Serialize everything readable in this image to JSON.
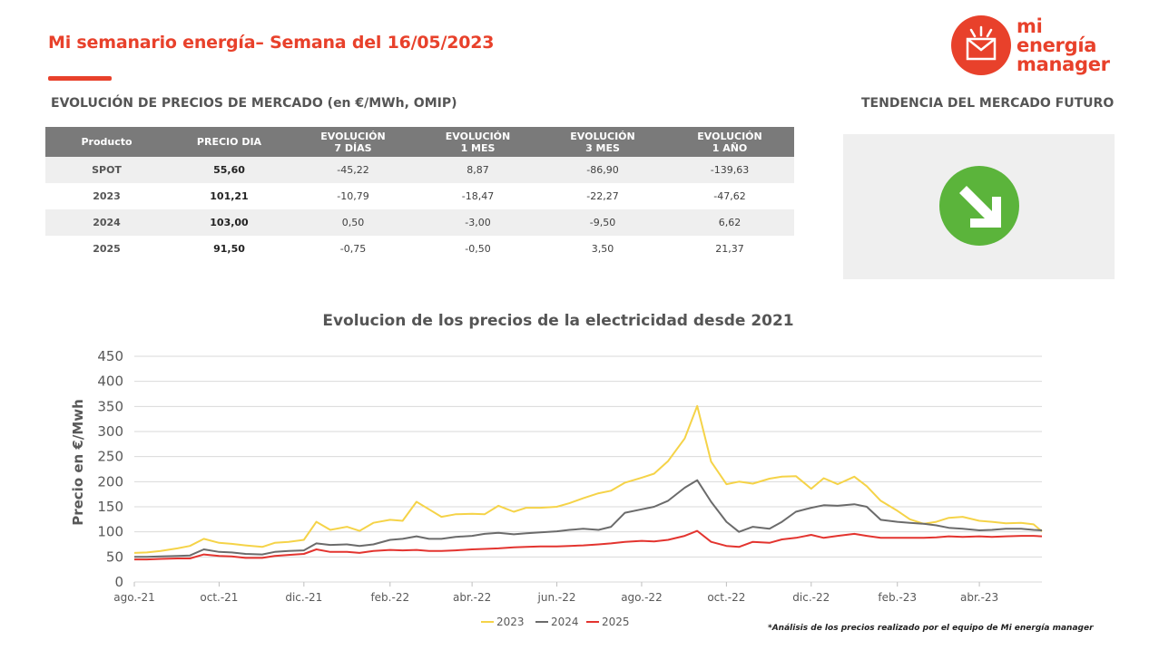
{
  "header": {
    "title": "Mi semanario energía– Semana del 16/05/2023"
  },
  "logo": {
    "line1": "mi",
    "line2": "energía",
    "line3": "manager",
    "color": "#e8412b"
  },
  "sections": {
    "left": "EVOLUCIÓN DE PRECIOS DE MERCADO (en €/MWh, OMIP)",
    "right": "TENDENCIA DEL MERCADO FUTURO"
  },
  "table": {
    "headers": [
      [
        "Producto"
      ],
      [
        "PRECIO DIA"
      ],
      [
        "EVOLUCIÓN",
        "7 DÍAS"
      ],
      [
        "EVOLUCIÓN",
        "1 MES"
      ],
      [
        "EVOLUCIÓN",
        "3 MES"
      ],
      [
        "EVOLUCIÓN",
        "1 AÑO"
      ]
    ],
    "rows": [
      [
        "SPOT",
        "55,60",
        "-45,22",
        "8,87",
        "-86,90",
        "-139,63"
      ],
      [
        "2023",
        "101,21",
        "-10,79",
        "-18,47",
        "-22,27",
        "-47,62"
      ],
      [
        "2024",
        "103,00",
        "0,50",
        "-3,00",
        "-9,50",
        "6,62"
      ],
      [
        "2025",
        "91,50",
        "-0,75",
        "-0,50",
        "3,50",
        "21,37"
      ]
    ]
  },
  "trend": {
    "icon": "arrow-down-right-icon",
    "color": "#5bb43b"
  },
  "chart_data": {
    "type": "line",
    "title": "Evolucion de los precios de la electricidad desde 2021",
    "ylabel": "Precio en €/Mwh",
    "xlabel": "",
    "ylim": [
      0,
      450
    ],
    "yticks": [
      0,
      50,
      100,
      150,
      200,
      250,
      300,
      350,
      400,
      450
    ],
    "xticks": [
      "ago.-21",
      "oct.-21",
      "dic.-21",
      "feb.-22",
      "abr.-22",
      "jun.-22",
      "ago.-22",
      "oct.-22",
      "dic.-22",
      "feb.-23",
      "abr.-23"
    ],
    "x_start": "2021-08-01",
    "x_end": "2023-05-16",
    "grid": true,
    "legend_position": "bottom",
    "x": [
      "2021-08-01",
      "2021-08-10",
      "2021-08-20",
      "2021-09-01",
      "2021-09-10",
      "2021-09-20",
      "2021-10-01",
      "2021-10-10",
      "2021-10-20",
      "2021-11-01",
      "2021-11-10",
      "2021-11-20",
      "2021-12-01",
      "2021-12-10",
      "2021-12-20",
      "2022-01-01",
      "2022-01-10",
      "2022-01-20",
      "2022-02-01",
      "2022-02-10",
      "2022-02-20",
      "2022-03-01",
      "2022-03-10",
      "2022-03-20",
      "2022-04-01",
      "2022-04-10",
      "2022-04-20",
      "2022-05-01",
      "2022-05-10",
      "2022-05-20",
      "2022-06-01",
      "2022-06-10",
      "2022-06-20",
      "2022-07-01",
      "2022-07-10",
      "2022-07-20",
      "2022-08-01",
      "2022-08-10",
      "2022-08-20",
      "2022-09-01",
      "2022-09-10",
      "2022-09-20",
      "2022-10-01",
      "2022-10-10",
      "2022-10-20",
      "2022-11-01",
      "2022-11-10",
      "2022-11-20",
      "2022-12-01",
      "2022-12-10",
      "2022-12-20",
      "2023-01-01",
      "2023-01-10",
      "2023-01-20",
      "2023-02-01",
      "2023-02-10",
      "2023-02-20",
      "2023-03-01",
      "2023-03-10",
      "2023-03-20",
      "2023-04-01",
      "2023-04-10",
      "2023-04-20",
      "2023-05-01",
      "2023-05-10",
      "2023-05-16"
    ],
    "series": [
      {
        "name": "2023",
        "color": "#f5d348",
        "values": [
          58,
          59,
          62,
          67,
          72,
          86,
          78,
          76,
          73,
          70,
          78,
          80,
          84,
          120,
          104,
          110,
          102,
          118,
          124,
          122,
          160,
          145,
          130,
          135,
          136,
          135,
          152,
          140,
          148,
          148,
          150,
          157,
          167,
          177,
          182,
          198,
          208,
          216,
          241,
          286,
          351,
          240,
          195,
          200,
          196,
          206,
          210,
          211,
          186,
          207,
          195,
          210,
          191,
          162,
          142,
          125,
          116,
          120,
          128,
          130,
          122,
          120,
          117,
          118,
          115,
          101
        ]
      },
      {
        "name": "2024",
        "color": "#6b6b6b",
        "values": [
          50,
          50,
          51,
          52,
          53,
          65,
          60,
          59,
          56,
          55,
          60,
          62,
          63,
          77,
          74,
          75,
          72,
          75,
          84,
          86,
          91,
          86,
          86,
          90,
          92,
          96,
          98,
          95,
          97,
          99,
          101,
          104,
          106,
          104,
          110,
          138,
          145,
          150,
          162,
          188,
          203,
          160,
          120,
          100,
          110,
          106,
          120,
          140,
          148,
          153,
          152,
          155,
          150,
          124,
          120,
          118,
          116,
          113,
          108,
          106,
          103,
          104,
          106,
          106,
          104,
          103
        ]
      },
      {
        "name": "2025",
        "color": "#e3342f",
        "values": [
          45,
          45,
          46,
          47,
          47,
          55,
          52,
          51,
          48,
          48,
          52,
          54,
          56,
          65,
          60,
          60,
          58,
          62,
          64,
          63,
          64,
          62,
          62,
          63,
          65,
          66,
          67,
          69,
          70,
          71,
          71,
          72,
          73,
          75,
          77,
          80,
          82,
          81,
          84,
          92,
          102,
          80,
          72,
          70,
          80,
          78,
          85,
          88,
          94,
          88,
          92,
          96,
          92,
          88,
          88,
          88,
          88,
          89,
          91,
          90,
          91,
          90,
          91,
          92,
          92,
          91
        ]
      }
    ]
  },
  "note": "*Análisis de los precios realizado por el equipo de Mi energía manager"
}
